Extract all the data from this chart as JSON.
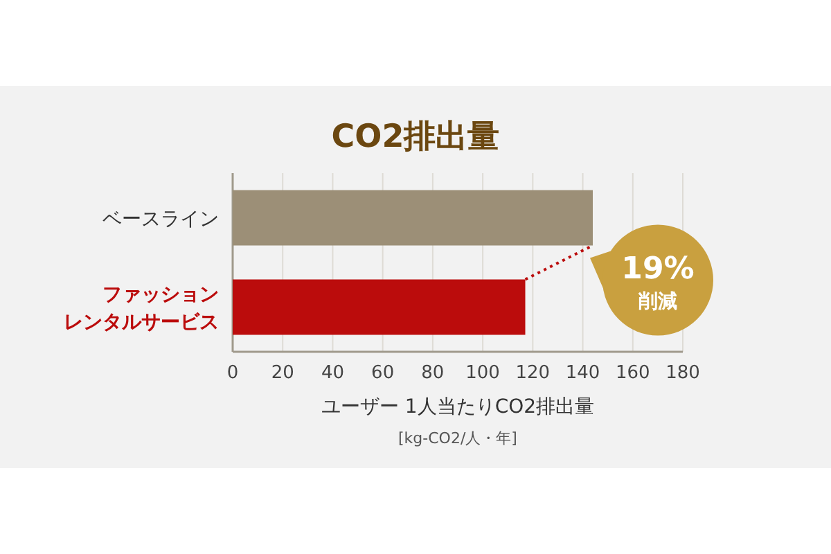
{
  "chart_data": {
    "type": "bar",
    "orientation": "horizontal",
    "title": "CO2排出量",
    "xlabel": "ユーザー 1人当たりCO2排出量",
    "categories": [
      "ベースライン",
      "ファッションレンタルサービス"
    ],
    "values": [
      144,
      117
    ],
    "colors": [
      "#9c8f77",
      "#bb0c0c"
    ],
    "xlim": [
      0,
      180
    ],
    "xticks": [
      0,
      20,
      40,
      60,
      80,
      100,
      120,
      140,
      160,
      180
    ],
    "grid": "x",
    "annotations": [
      "[kg-CO2/人・年]",
      {
        "text": "19% 削減",
        "x": 144,
        "y": "ベースライン"
      }
    ]
  }
}
